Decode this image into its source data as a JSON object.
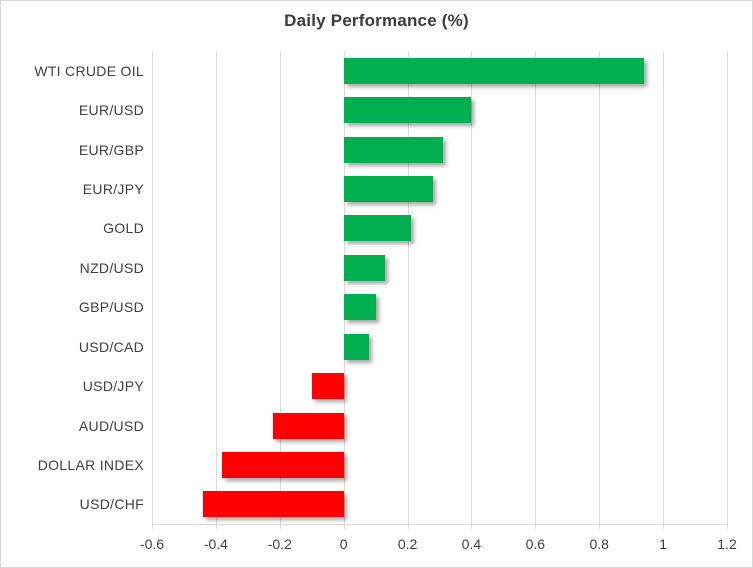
{
  "chart_data": {
    "type": "bar",
    "orientation": "horizontal",
    "title": "Daily Performance (%)",
    "categories": [
      "WTI CRUDE OIL",
      "EUR/USD",
      "EUR/GBP",
      "EUR/JPY",
      "GOLD",
      "NZD/USD",
      "GBP/USD",
      "USD/CAD",
      "USD/JPY",
      "AUD/USD",
      "DOLLAR INDEX",
      "USD/CHF"
    ],
    "values": [
      0.94,
      0.4,
      0.31,
      0.28,
      0.21,
      0.13,
      0.1,
      0.08,
      -0.1,
      -0.22,
      -0.38,
      -0.44
    ],
    "xlim": [
      -0.6,
      1.2
    ],
    "x_ticks": [
      -0.6,
      -0.4,
      -0.2,
      0,
      0.2,
      0.4,
      0.6,
      0.8,
      1,
      1.2
    ],
    "x_tick_labels": [
      "-0.6",
      "-0.4",
      "-0.2",
      "0",
      "0.2",
      "0.4",
      "0.6",
      "0.8",
      "1",
      "1.2"
    ],
    "grid": true,
    "legend": false,
    "positive_color": "#00B050",
    "negative_color": "#FF0000",
    "gridline_color": "#D9D9D9",
    "text_color": "#404040"
  }
}
